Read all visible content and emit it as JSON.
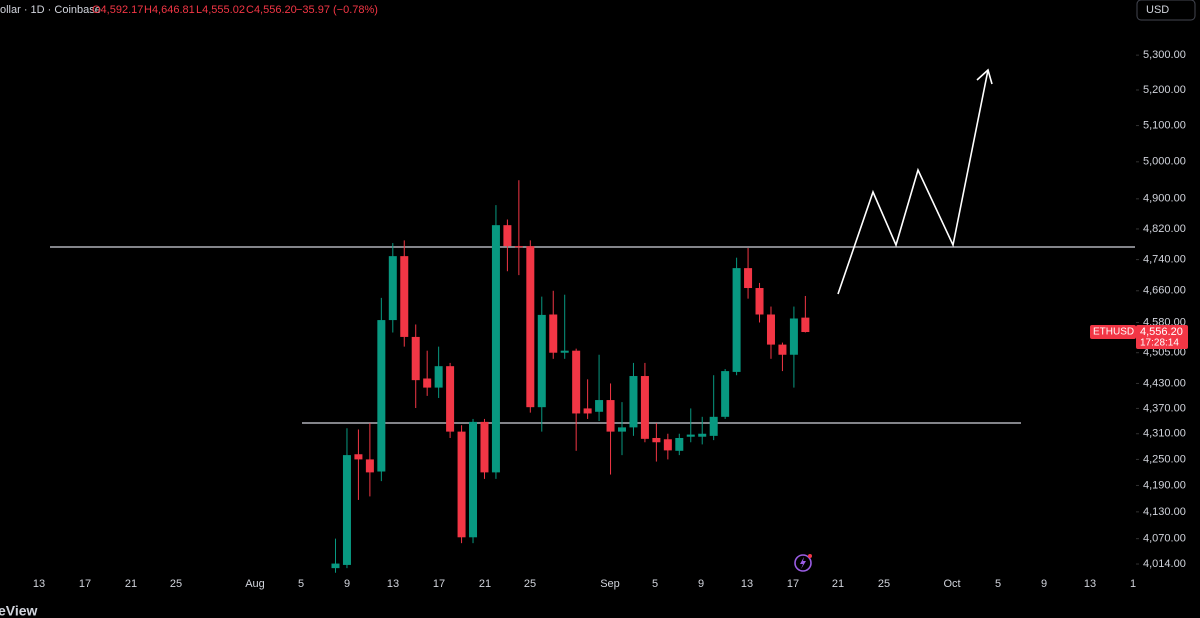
{
  "chart_data": {
    "type": "candlestick",
    "header": {
      "symbol": "ollar · 1D · Coinbase",
      "open": "O4,592.17",
      "high": "H4,646.81",
      "low": "L4,555.02",
      "close": "C4,556.20",
      "change": "−35.97 (−0.78%)"
    },
    "currency": "USD",
    "watermark": "eView",
    "log_scale": true,
    "up_color": "#089981",
    "down_color": "#f23645",
    "categories": [
      "Aug 8",
      "Aug 9",
      "Aug 10",
      "Aug 11",
      "Aug 12",
      "Aug 13",
      "Aug 14",
      "Aug 15",
      "Aug 16",
      "Aug 17",
      "Aug 18",
      "Aug 19",
      "Aug 20",
      "Aug 21",
      "Aug 22",
      "Aug 23",
      "Aug 24",
      "Aug 25",
      "Aug 26",
      "Aug 27",
      "Aug 28",
      "Aug 29",
      "Aug 30",
      "Aug 31",
      "Sep 1",
      "Sep 2",
      "Sep 3",
      "Sep 4",
      "Sep 5",
      "Sep 6",
      "Sep 7",
      "Sep 8",
      "Sep 9",
      "Sep 10",
      "Sep 11",
      "Sep 12",
      "Sep 13",
      "Sep 14",
      "Sep 15",
      "Sep 16",
      "Sep 17",
      "Sep 18"
    ],
    "series": [
      {
        "name": "ETHUSD",
        "open": [
          4005,
          4012,
          4262,
          4250,
          4222,
          4586,
          4749,
          4544,
          4442,
          4420,
          4472,
          4315,
          4073,
          4338,
          4220,
          4830,
          4775,
          4775,
          4373,
          4600,
          4505,
          4510,
          4370,
          4362,
          4390,
          4315,
          4325,
          4448,
          4300,
          4297,
          4270,
          4303,
          4303,
          4305,
          4350,
          4458,
          4718,
          4667,
          4600,
          4525,
          4500,
          4592.17
        ],
        "high": [
          4070,
          4323,
          4320,
          4335,
          4642,
          4783,
          4790,
          4575,
          4510,
          4520,
          4480,
          4330,
          4345,
          4345,
          4883,
          4845,
          4950,
          4790,
          4645,
          4660,
          4650,
          4515,
          4440,
          4500,
          4430,
          4385,
          4480,
          4480,
          4335,
          4310,
          4310,
          4370,
          4350,
          4450,
          4465,
          4745,
          4770,
          4680,
          4620,
          4530,
          4620,
          4646.81
        ],
        "low": [
          3995,
          4005,
          4157,
          4165,
          4200,
          4555,
          4520,
          4371,
          4400,
          4395,
          4300,
          4060,
          4060,
          4205,
          4205,
          4710,
          4700,
          4360,
          4315,
          4490,
          4490,
          4270,
          4345,
          4340,
          4215,
          4260,
          4305,
          4290,
          4245,
          4250,
          4260,
          4290,
          4285,
          4295,
          4345,
          4450,
          4640,
          4580,
          4490,
          4460,
          4420,
          4555.02
        ],
        "close": [
          4015,
          4260,
          4250,
          4220,
          4586,
          4749,
          4544,
          4438,
          4420,
          4472,
          4315,
          4073,
          4338,
          4220,
          4830,
          4775,
          4772,
          4373,
          4599,
          4505,
          4510,
          4358,
          4358,
          4390,
          4315,
          4325,
          4448,
          4298,
          4290,
          4271,
          4300,
          4308,
          4310,
          4350,
          4460,
          4718,
          4667,
          4600,
          4525,
          4500,
          4590,
          4556.2
        ]
      }
    ],
    "price_tag": {
      "label": "4,556.20",
      "timer": "17:28:14"
    },
    "xticks": [
      "13",
      "17",
      "21",
      "25",
      "Aug",
      "5",
      "9",
      "13",
      "17",
      "21",
      "25",
      "Sep",
      "5",
      "9",
      "13",
      "17",
      "21",
      "25",
      "Oct",
      "5",
      "9",
      "13",
      "1"
    ],
    "ylim": [
      3990,
      5462
    ],
    "yticks": [
      {
        "value": 5300,
        "label": "5,300.00"
      },
      {
        "value": 5200,
        "label": "5,200.00"
      },
      {
        "value": 5100,
        "label": "5,100.00"
      },
      {
        "value": 5000,
        "label": "5,000.00"
      },
      {
        "value": 4900,
        "label": "4,900.00"
      },
      {
        "value": 4820,
        "label": "4,820.00"
      },
      {
        "value": 4740,
        "label": "4,740.00"
      },
      {
        "value": 4660,
        "label": "4,660.00"
      },
      {
        "value": 4580,
        "label": "4,580.00"
      },
      {
        "value": 4505,
        "label": "4,505.00"
      },
      {
        "value": 4430,
        "label": "4,430.00"
      },
      {
        "value": 4370,
        "label": "4,370.00"
      },
      {
        "value": 4310,
        "label": "4,310.00"
      },
      {
        "value": 4250,
        "label": "4,250.00"
      },
      {
        "value": 4190,
        "label": "4,190.00"
      },
      {
        "value": 4130,
        "label": "4,130.00"
      },
      {
        "value": 4070,
        "label": "4,070.00"
      },
      {
        "value": 4014,
        "label": "4,014.00"
      }
    ]
  }
}
